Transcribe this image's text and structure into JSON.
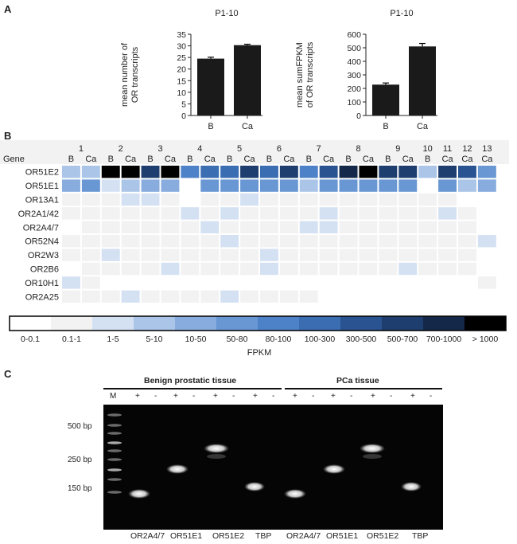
{
  "panel_labels": {
    "a": "A",
    "b": "B",
    "c": "C"
  },
  "chart_data": [
    {
      "type": "bar",
      "title": "P1-10",
      "ylabel": "mean number of OR transcripts",
      "categories": [
        "B",
        "Ca"
      ],
      "values": [
        24.5,
        30.3
      ],
      "errors": [
        0.6,
        0.4
      ],
      "ylim": [
        0,
        35
      ],
      "yticks": [
        0,
        5,
        10,
        15,
        20,
        25,
        30,
        35
      ],
      "bar_color": "#1a1a1a"
    },
    {
      "type": "bar",
      "title": "P1-10",
      "ylabel": "mean sumFPKM of OR transcripts",
      "categories": [
        "B",
        "Ca"
      ],
      "values": [
        228,
        510
      ],
      "errors": [
        12,
        22
      ],
      "ylim": [
        0,
        600
      ],
      "yticks": [
        0,
        100,
        200,
        300,
        400,
        500,
        600
      ],
      "bar_color": "#1a1a1a"
    },
    {
      "type": "heatmap",
      "row_header": "Gene",
      "patients": [
        "1",
        "2",
        "3",
        "4",
        "5",
        "6",
        "7",
        "8",
        "9",
        "10",
        "11",
        "12",
        "13"
      ],
      "columns": [
        {
          "p": 1,
          "t": "B"
        },
        {
          "p": 1,
          "t": "Ca"
        },
        {
          "p": 2,
          "t": "B"
        },
        {
          "p": 2,
          "t": "Ca"
        },
        {
          "p": 3,
          "t": "B"
        },
        {
          "p": 3,
          "t": "Ca"
        },
        {
          "p": 4,
          "t": "B"
        },
        {
          "p": 4,
          "t": "Ca"
        },
        {
          "p": 5,
          "t": "B"
        },
        {
          "p": 5,
          "t": "Ca"
        },
        {
          "p": 6,
          "t": "B"
        },
        {
          "p": 6,
          "t": "Ca"
        },
        {
          "p": 7,
          "t": "B"
        },
        {
          "p": 7,
          "t": "Ca"
        },
        {
          "p": 8,
          "t": "B"
        },
        {
          "p": 8,
          "t": "Ca"
        },
        {
          "p": 9,
          "t": "B"
        },
        {
          "p": 9,
          "t": "Ca"
        },
        {
          "p": 10,
          "t": "B"
        },
        {
          "p": 11,
          "t": "Ca"
        },
        {
          "p": 12,
          "t": "Ca"
        },
        {
          "p": 13,
          "t": "Ca"
        }
      ],
      "rows": [
        "OR51E2",
        "OR51E1",
        "OR13A1",
        "OR2A1/42",
        "OR2A4/7",
        "OR52N4",
        "OR2W3",
        "OR2B6",
        "OR10H1",
        "OR2A25"
      ],
      "values": [
        [
          3,
          3,
          11,
          12,
          9,
          12,
          6,
          7,
          7,
          9,
          7,
          9,
          6,
          8,
          10,
          11,
          9,
          9,
          3,
          9,
          8,
          5
        ],
        [
          4,
          5,
          2,
          3,
          4,
          4,
          0,
          5,
          5,
          5,
          5,
          5,
          3,
          5,
          5,
          5,
          5,
          5,
          0,
          5,
          3,
          4
        ],
        [
          1,
          1,
          1,
          2,
          2,
          1,
          0,
          1,
          1,
          2,
          1,
          1,
          1,
          1,
          1,
          1,
          1,
          1,
          1,
          1,
          0,
          0
        ],
        [
          1,
          1,
          1,
          1,
          1,
          1,
          2,
          1,
          2,
          1,
          1,
          1,
          1,
          2,
          1,
          1,
          1,
          1,
          1,
          2,
          1,
          0
        ],
        [
          0,
          1,
          1,
          1,
          1,
          1,
          1,
          2,
          1,
          1,
          1,
          1,
          2,
          2,
          1,
          1,
          1,
          1,
          1,
          1,
          1,
          0
        ],
        [
          1,
          1,
          1,
          1,
          1,
          1,
          1,
          1,
          2,
          1,
          1,
          1,
          1,
          1,
          1,
          1,
          1,
          1,
          1,
          1,
          1,
          2
        ],
        [
          1,
          1,
          2,
          1,
          1,
          1,
          1,
          1,
          1,
          1,
          2,
          1,
          1,
          1,
          1,
          1,
          1,
          1,
          1,
          1,
          1,
          0
        ],
        [
          0,
          1,
          1,
          1,
          1,
          2,
          1,
          1,
          1,
          1,
          2,
          1,
          1,
          1,
          1,
          1,
          1,
          2,
          1,
          1,
          1,
          0
        ],
        [
          2,
          1,
          0,
          0,
          0,
          0,
          0,
          0,
          0,
          0,
          0,
          0,
          0,
          0,
          0,
          0,
          0,
          0,
          0,
          0,
          0,
          1
        ],
        [
          1,
          1,
          1,
          2,
          1,
          1,
          1,
          1,
          2,
          1,
          1,
          1,
          1,
          0,
          0,
          0,
          0,
          0,
          0,
          0,
          0,
          0
        ]
      ],
      "legend_title": "FPKM",
      "legend_labels": [
        "0-0.1",
        "0.1-1",
        "1-5",
        "5-10",
        "10-50",
        "50-80",
        "80-100",
        "100-300",
        "300-500",
        "500-700",
        "700-1000",
        "> 1000"
      ],
      "legend_colors": [
        "#ffffff",
        "#f2f2f2",
        "#d4e1f3",
        "#aac5e8",
        "#87acdd",
        "#6897d3",
        "#4e82c8",
        "#3a6db2",
        "#2a5491",
        "#1d3e6e",
        "#14284a",
        "#000000"
      ]
    }
  ],
  "gel": {
    "group_labels": [
      "Benign prostatic tissue",
      "PCa tissue"
    ],
    "marker_lane_label": "M",
    "lane_signs": [
      "+",
      "-",
      "+",
      "-",
      "+",
      "-",
      "+",
      "-",
      "+",
      "-",
      "+",
      "-",
      "+",
      "-",
      "+",
      "-"
    ],
    "size_labels": [
      "500 bp",
      "250 bp",
      "150 bp"
    ],
    "gene_labels": [
      "OR2A4/7",
      "OR51E1",
      "OR51E2",
      "TBP",
      "OR2A4/7",
      "OR51E1",
      "OR51E2",
      "TBP"
    ]
  }
}
